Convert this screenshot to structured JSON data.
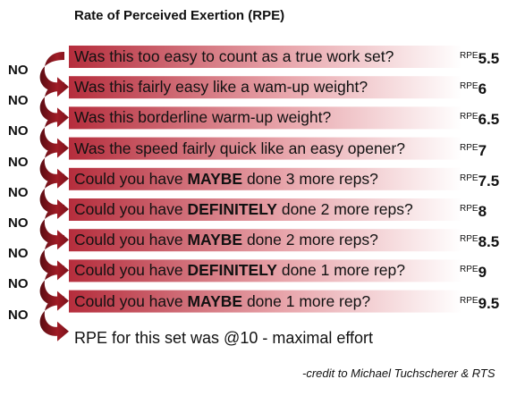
{
  "title": "Rate of Perceived Exertion (RPE)",
  "rpe_label": "RPE",
  "no_label": "NO",
  "rows": [
    {
      "parts": [
        {
          "t": "Was this too easy to count as a true work set?",
          "b": false
        }
      ],
      "rpe": "5.5"
    },
    {
      "parts": [
        {
          "t": "Was this fairly easy like a wam-up weight?",
          "b": false
        }
      ],
      "rpe": "6"
    },
    {
      "parts": [
        {
          "t": "Was this borderline warm-up weight?",
          "b": false
        }
      ],
      "rpe": "6.5"
    },
    {
      "parts": [
        {
          "t": "Was the speed fairly quick like an easy opener?",
          "b": false
        }
      ],
      "rpe": "7"
    },
    {
      "parts": [
        {
          "t": "Could you have ",
          "b": false
        },
        {
          "t": "MAYBE",
          "b": true
        },
        {
          "t": " done 3 more reps?",
          "b": false
        }
      ],
      "rpe": "7.5"
    },
    {
      "parts": [
        {
          "t": "Could you have ",
          "b": false
        },
        {
          "t": "DEFINITELY",
          "b": true
        },
        {
          "t": " done 2 more reps?",
          "b": false
        }
      ],
      "rpe": "8"
    },
    {
      "parts": [
        {
          "t": "Could you have ",
          "b": false
        },
        {
          "t": "MAYBE",
          "b": true
        },
        {
          "t": " done 2 more reps?",
          "b": false
        }
      ],
      "rpe": "8.5"
    },
    {
      "parts": [
        {
          "t": "Could you have ",
          "b": false
        },
        {
          "t": "DEFINITELY",
          "b": true
        },
        {
          "t": " done 1 more rep?",
          "b": false
        }
      ],
      "rpe": "9"
    },
    {
      "parts": [
        {
          "t": "Could you have ",
          "b": false
        },
        {
          "t": "MAYBE",
          "b": true
        },
        {
          "t": " done 1 more rep?",
          "b": false
        }
      ],
      "rpe": "9.5"
    }
  ],
  "final_text": "RPE for this set was @10 - maximal effort",
  "credit": "-credit to Michael Tuchscherer & RTS",
  "colors": {
    "bar_dark": "#b52d3c",
    "bar_mid": "#e8a5ab",
    "bar_light": "#ffffff",
    "arrow_dark": "#5a0c12",
    "arrow_mid": "#a01c26"
  }
}
